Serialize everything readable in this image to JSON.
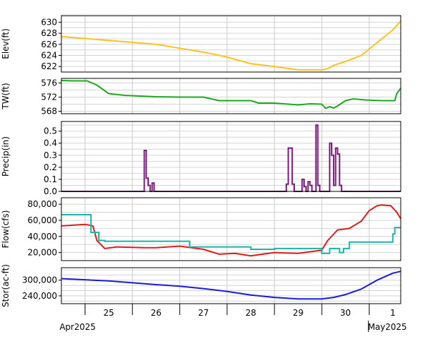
{
  "chart_data": {
    "type": "line",
    "x_range": [
      "2025-04-24T12:00",
      "2025-05-01T16:00"
    ],
    "x_axis": {
      "day_labels": [
        "25",
        "26",
        "27",
        "28",
        "29",
        "30",
        "1"
      ],
      "month_labels": [
        "Apr2025",
        "May2025"
      ],
      "month_boundary": "2025-05-01T00:00"
    },
    "grid": true,
    "panels": [
      {
        "id": "elev",
        "ylabel": "Elev(ft)",
        "ylim": [
          621,
          631.2
        ],
        "yticks": [
          622,
          624,
          626,
          628,
          630
        ],
        "tick_labels": [
          "622",
          "624",
          "626",
          "628",
          "630"
        ],
        "minor_step": 1,
        "series": [
          {
            "color": "#fcc21a",
            "step": false,
            "points": [
              [
                "2025-04-24T12:00",
                627.4
              ],
              [
                "2025-04-25T12:00",
                626.7
              ],
              [
                "2025-04-26T12:00",
                626.0
              ],
              [
                "2025-04-27T00:00",
                625.3
              ],
              [
                "2025-04-27T12:00",
                624.6
              ],
              [
                "2025-04-28T00:00",
                623.7
              ],
              [
                "2025-04-28T12:00",
                622.5
              ],
              [
                "2025-04-29T00:00",
                622.0
              ],
              [
                "2025-04-29T12:00",
                621.4
              ],
              [
                "2025-04-30T00:00",
                621.4
              ],
              [
                "2025-04-30T03:00",
                621.6
              ],
              [
                "2025-04-30T06:00",
                622.2
              ],
              [
                "2025-04-30T12:00",
                622.9
              ],
              [
                "2025-04-30T20:00",
                624.0
              ],
              [
                "2025-05-01T04:00",
                626.3
              ],
              [
                "2025-05-01T12:00",
                628.6
              ],
              [
                "2025-05-01T16:00",
                630.2
              ]
            ]
          }
        ]
      },
      {
        "id": "tw",
        "ylabel": "TW(ft)",
        "ylim": [
          567.3,
          577.3
        ],
        "yticks": [
          568,
          572,
          576
        ],
        "tick_labels": [
          "568",
          "572",
          "576"
        ],
        "minor_step": 2,
        "series": [
          {
            "color": "#1aaa1a",
            "step": false,
            "points": [
              [
                "2025-04-24T12:00",
                576.7
              ],
              [
                "2025-04-24T18:00",
                576.6
              ],
              [
                "2025-04-25T01:00",
                576.6
              ],
              [
                "2025-04-25T06:00",
                575.4
              ],
              [
                "2025-04-25T12:00",
                573.0
              ],
              [
                "2025-04-25T20:00",
                572.5
              ],
              [
                "2025-04-26T00:00",
                572.4
              ],
              [
                "2025-04-26T12:00",
                572.1
              ],
              [
                "2025-04-27T00:00",
                572.0
              ],
              [
                "2025-04-27T12:00",
                572.0
              ],
              [
                "2025-04-27T20:00",
                571.0
              ],
              [
                "2025-04-28T12:00",
                571.0
              ],
              [
                "2025-04-28T16:00",
                570.3
              ],
              [
                "2025-04-29T00:00",
                570.3
              ],
              [
                "2025-04-29T12:00",
                569.8
              ],
              [
                "2025-04-29T18:00",
                570.1
              ],
              [
                "2025-04-30T00:00",
                570.0
              ],
              [
                "2025-04-30T02:00",
                568.8
              ],
              [
                "2025-04-30T04:00",
                569.3
              ],
              [
                "2025-04-30T06:00",
                568.9
              ],
              [
                "2025-04-30T08:00",
                569.5
              ],
              [
                "2025-04-30T12:00",
                571.0
              ],
              [
                "2025-04-30T16:00",
                571.5
              ],
              [
                "2025-04-30T22:00",
                571.2
              ],
              [
                "2025-05-01T06:00",
                571.0
              ],
              [
                "2025-05-01T13:00",
                571.0
              ],
              [
                "2025-05-01T14:00",
                573.0
              ],
              [
                "2025-05-01T16:00",
                574.5
              ]
            ]
          }
        ]
      },
      {
        "id": "precip",
        "ylabel": "Precip(in)",
        "ylim": [
          0,
          0.58
        ],
        "yticks": [
          0,
          0.1,
          0.2,
          0.3,
          0.4,
          0.5
        ],
        "tick_labels": [
          "0.0",
          "0.1",
          "0.2",
          "0.3",
          "0.4",
          "0.5"
        ],
        "minor_step": 0.05,
        "series": [
          {
            "color": "#7a1a7a",
            "step": true,
            "points": [
              [
                "2025-04-24T12:00",
                0
              ],
              [
                "2025-04-26T06:00",
                0
              ],
              [
                "2025-04-26T06:00",
                0.34
              ],
              [
                "2025-04-26T07:00",
                0.34
              ],
              [
                "2025-04-26T07:00",
                0.11
              ],
              [
                "2025-04-26T08:00",
                0.11
              ],
              [
                "2025-04-26T08:00",
                0.05
              ],
              [
                "2025-04-26T09:00",
                0.05
              ],
              [
                "2025-04-26T09:00",
                0.0
              ],
              [
                "2025-04-26T10:00",
                0.0
              ],
              [
                "2025-04-26T10:00",
                0.07
              ],
              [
                "2025-04-26T11:00",
                0.07
              ],
              [
                "2025-04-26T11:00",
                0
              ],
              [
                "2025-04-29T06:00",
                0
              ],
              [
                "2025-04-29T06:00",
                0.06
              ],
              [
                "2025-04-29T07:00",
                0.06
              ],
              [
                "2025-04-29T07:00",
                0.36
              ],
              [
                "2025-04-29T09:00",
                0.36
              ],
              [
                "2025-04-29T09:00",
                0.06
              ],
              [
                "2025-04-29T10:00",
                0.06
              ],
              [
                "2025-04-29T10:00",
                0
              ],
              [
                "2025-04-29T14:00",
                0
              ],
              [
                "2025-04-29T14:00",
                0.1
              ],
              [
                "2025-04-29T15:00",
                0.1
              ],
              [
                "2025-04-29T15:00",
                0.04
              ],
              [
                "2025-04-29T16:00",
                0.04
              ],
              [
                "2025-04-29T16:00",
                0
              ],
              [
                "2025-04-29T17:00",
                0
              ],
              [
                "2025-04-29T17:00",
                0.08
              ],
              [
                "2025-04-29T18:00",
                0.08
              ],
              [
                "2025-04-29T18:00",
                0.05
              ],
              [
                "2025-04-29T19:00",
                0.05
              ],
              [
                "2025-04-29T19:00",
                0
              ],
              [
                "2025-04-29T21:00",
                0
              ],
              [
                "2025-04-29T21:00",
                0.55
              ],
              [
                "2025-04-29T22:00",
                0.55
              ],
              [
                "2025-04-29T22:00",
                0.05
              ],
              [
                "2025-04-29T23:00",
                0.05
              ],
              [
                "2025-04-29T23:00",
                0
              ],
              [
                "2025-04-30T04:00",
                0
              ],
              [
                "2025-04-30T04:00",
                0.4
              ],
              [
                "2025-04-30T05:00",
                0.4
              ],
              [
                "2025-04-30T05:00",
                0.3
              ],
              [
                "2025-04-30T06:00",
                0.3
              ],
              [
                "2025-04-30T06:00",
                0.05
              ],
              [
                "2025-04-30T07:00",
                0.05
              ],
              [
                "2025-04-30T07:00",
                0.36
              ],
              [
                "2025-04-30T08:00",
                0.36
              ],
              [
                "2025-04-30T08:00",
                0.31
              ],
              [
                "2025-04-30T09:00",
                0.31
              ],
              [
                "2025-04-30T09:00",
                0.05
              ],
              [
                "2025-04-30T10:00",
                0.05
              ],
              [
                "2025-04-30T10:00",
                0
              ],
              [
                "2025-05-01T16:00",
                0
              ]
            ]
          }
        ]
      },
      {
        "id": "flow",
        "ylabel": "Flow(cfs)",
        "ylim": [
          10000,
          88000
        ],
        "yticks": [
          20000,
          40000,
          60000,
          80000
        ],
        "tick_labels": [
          "20,000",
          "40,000",
          "60,000",
          "80,000"
        ],
        "minor_step": 10000,
        "series": [
          {
            "color": "#e31a1a",
            "step": false,
            "points": [
              [
                "2025-04-24T12:00",
                53000
              ],
              [
                "2025-04-25T00:00",
                55000
              ],
              [
                "2025-04-25T04:00",
                53000
              ],
              [
                "2025-04-25T06:00",
                35000
              ],
              [
                "2025-04-25T10:00",
                25000
              ],
              [
                "2025-04-25T16:00",
                27000
              ],
              [
                "2025-04-26T06:00",
                26000
              ],
              [
                "2025-04-26T12:00",
                26000
              ],
              [
                "2025-04-27T00:00",
                28000
              ],
              [
                "2025-04-27T12:00",
                24000
              ],
              [
                "2025-04-27T20:00",
                18000
              ],
              [
                "2025-04-28T04:00",
                19000
              ],
              [
                "2025-04-28T12:00",
                16000
              ],
              [
                "2025-04-29T00:00",
                20000
              ],
              [
                "2025-04-29T12:00",
                19000
              ],
              [
                "2025-04-30T00:00",
                23000
              ],
              [
                "2025-04-30T03:00",
                35000
              ],
              [
                "2025-04-30T08:00",
                48000
              ],
              [
                "2025-04-30T14:00",
                50000
              ],
              [
                "2025-04-30T20:00",
                59000
              ],
              [
                "2025-05-01T00:00",
                72000
              ],
              [
                "2025-05-01T04:00",
                78000
              ],
              [
                "2025-05-01T06:00",
                79000
              ],
              [
                "2025-05-01T11:00",
                78000
              ],
              [
                "2025-05-01T14:00",
                70000
              ],
              [
                "2025-05-01T16:00",
                62000
              ]
            ]
          },
          {
            "color": "#1ab4a8",
            "step": true,
            "points": [
              [
                "2025-04-24T12:00",
                67000
              ],
              [
                "2025-04-25T03:00",
                67000
              ],
              [
                "2025-04-25T03:00",
                45000
              ],
              [
                "2025-04-25T07:00",
                45000
              ],
              [
                "2025-04-25T07:00",
                35000
              ],
              [
                "2025-04-25T10:00",
                35000
              ],
              [
                "2025-04-25T10:00",
                34000
              ],
              [
                "2025-04-27T05:00",
                34000
              ],
              [
                "2025-04-27T05:00",
                27000
              ],
              [
                "2025-04-28T12:00",
                27000
              ],
              [
                "2025-04-28T12:00",
                24000
              ],
              [
                "2025-04-29T00:00",
                24000
              ],
              [
                "2025-04-29T00:00",
                25000
              ],
              [
                "2025-04-30T00:00",
                25000
              ],
              [
                "2025-04-30T00:00",
                19000
              ],
              [
                "2025-04-30T04:00",
                19000
              ],
              [
                "2025-04-30T04:00",
                25000
              ],
              [
                "2025-04-30T09:00",
                25000
              ],
              [
                "2025-04-30T09:00",
                20000
              ],
              [
                "2025-04-30T11:00",
                20000
              ],
              [
                "2025-04-30T11:00",
                25000
              ],
              [
                "2025-04-30T14:00",
                25000
              ],
              [
                "2025-04-30T14:00",
                33000
              ],
              [
                "2025-05-01T12:00",
                33000
              ],
              [
                "2025-05-01T12:00",
                43000
              ],
              [
                "2025-05-01T13:00",
                43000
              ],
              [
                "2025-05-01T13:00",
                51000
              ],
              [
                "2025-05-01T16:00",
                51000
              ]
            ]
          }
        ]
      },
      {
        "id": "stor",
        "ylabel": "Stor(ac-ft)",
        "ylim": [
          210000,
          348000
        ],
        "yticks": [
          240000,
          300000
        ],
        "tick_labels": [
          "240,000",
          "300,000"
        ],
        "minor_step": 20000,
        "series": [
          {
            "color": "#1a1add",
            "step": false,
            "points": [
              [
                "2025-04-24T12:00",
                306000
              ],
              [
                "2025-04-25T12:00",
                297000
              ],
              [
                "2025-04-26T00:00",
                290000
              ],
              [
                "2025-04-26T12:00",
                283000
              ],
              [
                "2025-04-27T00:00",
                277000
              ],
              [
                "2025-04-27T12:00",
                268000
              ],
              [
                "2025-04-28T00:00",
                257000
              ],
              [
                "2025-04-28T12:00",
                243000
              ],
              [
                "2025-04-29T00:00",
                234000
              ],
              [
                "2025-04-29T12:00",
                228000
              ],
              [
                "2025-04-30T00:00",
                228000
              ],
              [
                "2025-04-30T06:00",
                234000
              ],
              [
                "2025-04-30T12:00",
                245000
              ],
              [
                "2025-04-30T20:00",
                266000
              ],
              [
                "2025-05-01T04:00",
                300000
              ],
              [
                "2025-05-01T12:00",
                327000
              ],
              [
                "2025-05-01T16:00",
                334000
              ]
            ]
          }
        ]
      }
    ]
  }
}
